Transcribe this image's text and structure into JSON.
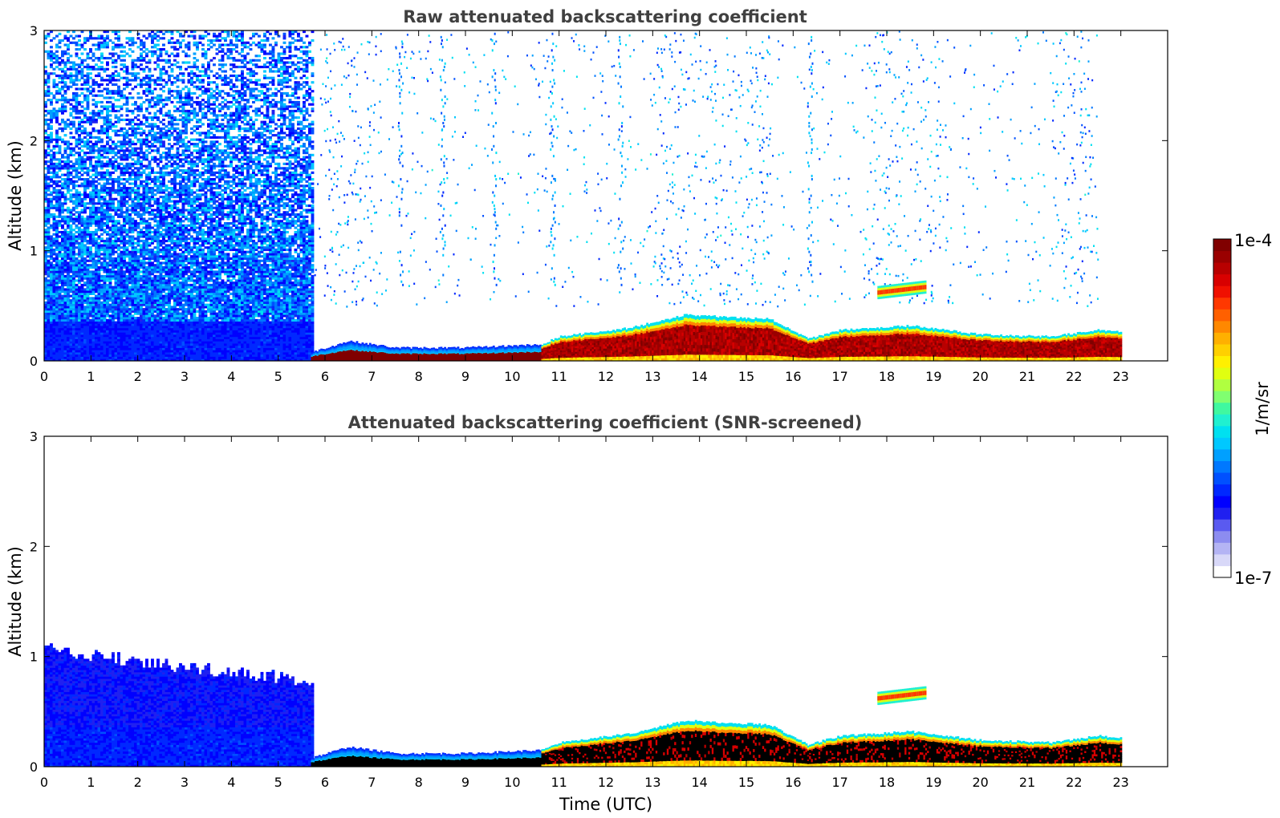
{
  "chart_data": [
    {
      "type": "heatmap",
      "title": "Raw attenuated backscattering coefficient",
      "xlabel": "",
      "ylabel": "Altitude (km)",
      "xlim": [
        0,
        24
      ],
      "ylim": [
        0,
        3
      ],
      "x_ticks": [
        "0",
        "1",
        "2",
        "3",
        "4",
        "5",
        "6",
        "7",
        "8",
        "9",
        "10",
        "11",
        "12",
        "13",
        "14",
        "15",
        "16",
        "17",
        "18",
        "19",
        "20",
        "21",
        "22",
        "23"
      ],
      "y_ticks": [
        "0",
        "1",
        "2",
        "3"
      ],
      "data_end_time": 23,
      "layers": [
        {
          "name": "noise",
          "t_start": 0,
          "t_end": 5.7,
          "alt_min": 0,
          "alt_max": 3
        },
        {
          "name": "boundary_layer_top",
          "time": [
            5.7,
            6.5,
            7.5,
            9.0,
            10.6,
            11.0,
            12.5,
            13.7,
            14.5,
            15.5,
            16.3,
            17.0,
            18.5,
            20.0,
            21.5,
            22.5,
            23.0
          ],
          "alt_km": [
            0.08,
            0.18,
            0.12,
            0.12,
            0.15,
            0.22,
            0.3,
            0.42,
            0.4,
            0.38,
            0.2,
            0.28,
            0.32,
            0.24,
            0.22,
            0.28,
            0.26
          ]
        },
        {
          "name": "elevated_layer",
          "t_start": 17.8,
          "t_end": 18.8,
          "alt_km": 0.62
        }
      ]
    },
    {
      "type": "heatmap",
      "title": "Attenuated backscattering coefficient (SNR-screened)",
      "xlabel": "Time (UTC)",
      "ylabel": "Altitude (km)",
      "xlim": [
        0,
        24
      ],
      "ylim": [
        0,
        3
      ],
      "x_ticks": [
        "0",
        "1",
        "2",
        "3",
        "4",
        "5",
        "6",
        "7",
        "8",
        "9",
        "10",
        "11",
        "12",
        "13",
        "14",
        "15",
        "16",
        "17",
        "18",
        "19",
        "20",
        "21",
        "22",
        "23"
      ],
      "y_ticks": [
        "0",
        "1",
        "2",
        "3"
      ],
      "data_end_time": 23,
      "layers": [
        {
          "name": "screened_noise",
          "t_start": 0,
          "t_end": 5.7,
          "alt_max_km": [
            1.1,
            1.0,
            0.95,
            0.9,
            0.85,
            0.8,
            0.75
          ]
        },
        {
          "name": "boundary_layer_top",
          "time": [
            5.7,
            6.5,
            7.5,
            9.0,
            10.6,
            11.0,
            12.5,
            13.7,
            14.5,
            15.5,
            16.3,
            17.0,
            18.5,
            20.0,
            21.5,
            22.5,
            23.0
          ],
          "alt_km": [
            0.08,
            0.18,
            0.12,
            0.12,
            0.15,
            0.22,
            0.3,
            0.42,
            0.4,
            0.38,
            0.2,
            0.28,
            0.32,
            0.24,
            0.22,
            0.28,
            0.26
          ]
        },
        {
          "name": "elevated_layer",
          "t_start": 17.8,
          "t_end": 18.8,
          "alt_km": 0.62
        }
      ]
    }
  ],
  "colorbar": {
    "label": "1/m/sr",
    "max_label": "1e-4",
    "min_label": "1e-7",
    "colors": [
      "#ffffff",
      "#d8d8f8",
      "#b4b4f4",
      "#8c8cf0",
      "#5a5af0",
      "#2020f0",
      "#0000ff",
      "#0028ff",
      "#0050ff",
      "#0078ff",
      "#00a0ff",
      "#00c8ff",
      "#00e0f0",
      "#20f0d0",
      "#40f8a0",
      "#80ff70",
      "#b0ff40",
      "#e0ff10",
      "#fff000",
      "#ffd000",
      "#ffb000",
      "#ff8800",
      "#ff6000",
      "#ff3800",
      "#f01000",
      "#d80000",
      "#b80000",
      "#9a0000",
      "#800000"
    ]
  }
}
